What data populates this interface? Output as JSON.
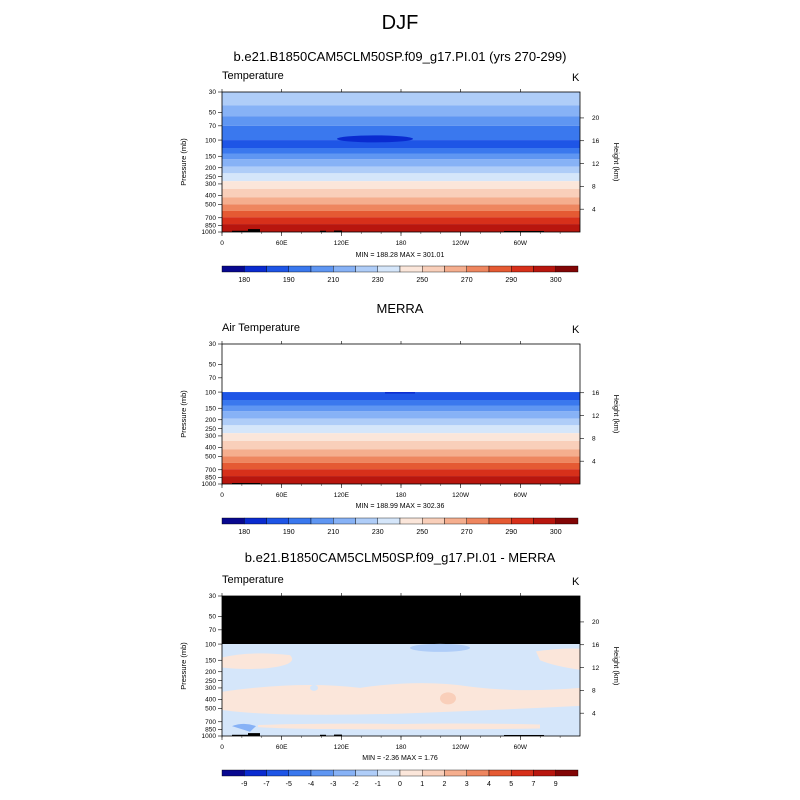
{
  "page_title": "DJF",
  "panels": [
    {
      "title": "b.e21.B1850CAM5CLM50SP.f09_g17.PI.01 (yrs 270-299)",
      "variable": "Temperature",
      "units": "K",
      "y_axis_label": "Pressure (mb)",
      "right_axis_label": "Height (km)",
      "minmax": "MIN = 188.28  MAX = 301.01",
      "colorbar_labels": [
        "180",
        "190",
        "210",
        "230",
        "250",
        "270",
        "290",
        "300"
      ]
    },
    {
      "title": "MERRA",
      "variable": "Air Temperature",
      "units": "K",
      "y_axis_label": "Pressure (mb)",
      "right_axis_label": "Height (km)",
      "minmax": "MIN = 188.99  MAX = 302.36",
      "colorbar_labels": [
        "180",
        "190",
        "210",
        "230",
        "250",
        "270",
        "290",
        "300"
      ]
    },
    {
      "title": "b.e21.B1850CAM5CLM50SP.f09_g17.PI.01 - MERRA",
      "variable": "Temperature",
      "units": "K",
      "y_axis_label": "Pressure (mb)",
      "right_axis_label": "Height (km)",
      "minmax": "MIN =  -2.36  MAX =   1.76",
      "colorbar_labels": [
        "-9",
        "-7",
        "-5",
        "-4",
        "-3",
        "-2",
        "-1",
        "0",
        "1",
        "2",
        "3",
        "4",
        "5",
        "7",
        "9"
      ]
    }
  ],
  "chart_data": [
    {
      "type": "heatmap",
      "title": "b.e21.B1850CAM5CLM50SP.f09_g17.PI.01 (yrs 270-299)",
      "variable": "Temperature",
      "units": "K",
      "min": 188.28,
      "max": 301.01,
      "x_ticks": [
        "0",
        "60E",
        "120E",
        "180",
        "120W",
        "60W"
      ],
      "y_ticks": [
        "30",
        "50",
        "70",
        "100",
        "150",
        "200",
        "250",
        "300",
        "400",
        "500",
        "700",
        "850",
        "1000"
      ],
      "right_ticks": [
        "20",
        "16",
        "12",
        "8",
        "4"
      ],
      "profile_pressure": [
        30,
        50,
        70,
        100,
        150,
        200,
        250,
        300,
        400,
        500,
        700,
        850,
        1000
      ],
      "profile_temperature_K": [
        212,
        206,
        200,
        196,
        210,
        218,
        226,
        232,
        248,
        258,
        274,
        282,
        292
      ],
      "colorbar_levels": [
        "180",
        "190",
        "210",
        "230",
        "250",
        "270",
        "290",
        "300"
      ]
    },
    {
      "type": "heatmap",
      "title": "MERRA",
      "variable": "Air Temperature",
      "units": "K",
      "min": 188.99,
      "max": 302.36,
      "x_ticks": [
        "0",
        "60E",
        "120E",
        "180",
        "120W",
        "60W"
      ],
      "y_ticks": [
        "30",
        "50",
        "70",
        "100",
        "150",
        "200",
        "250",
        "300",
        "400",
        "500",
        "700",
        "850",
        "1000"
      ],
      "right_ticks": [
        "16",
        "12",
        "8",
        "4"
      ],
      "profile_pressure": [
        100,
        150,
        200,
        250,
        300,
        400,
        500,
        700,
        850,
        1000
      ],
      "profile_temperature_K": [
        196,
        210,
        218,
        226,
        232,
        248,
        258,
        274,
        282,
        292
      ],
      "colorbar_levels": [
        "180",
        "190",
        "210",
        "230",
        "250",
        "270",
        "290",
        "300"
      ]
    },
    {
      "type": "heatmap",
      "title": "b.e21.B1850CAM5CLM50SP.f09_g17.PI.01 - MERRA",
      "variable": "Temperature",
      "units": "K",
      "min": -2.36,
      "max": 1.76,
      "x_ticks": [
        "0",
        "60E",
        "120E",
        "180",
        "120W",
        "60W"
      ],
      "y_ticks": [
        "30",
        "50",
        "70",
        "100",
        "150",
        "200",
        "250",
        "300",
        "400",
        "500",
        "700",
        "850",
        "1000"
      ],
      "right_ticks": [
        "20",
        "16",
        "12",
        "8",
        "4"
      ],
      "colorbar_levels": [
        "-9",
        "-7",
        "-5",
        "-4",
        "-3",
        "-2",
        "-1",
        "0",
        "1",
        "2",
        "3",
        "4",
        "5",
        "7",
        "9"
      ]
    }
  ],
  "colors": {
    "temp_scale": [
      "#08088f",
      "#0a2bd0",
      "#1e55e6",
      "#3a78ee",
      "#5f96f2",
      "#87b2f6",
      "#afcdf8",
      "#d5e6fa",
      "#fbe6da",
      "#f9cfba",
      "#f5ae8e",
      "#ee865f",
      "#e55a33",
      "#d7301a",
      "#b8160e",
      "#820606"
    ],
    "diff_scale": [
      "#08088f",
      "#0a2bd0",
      "#1e55e6",
      "#3a78ee",
      "#5f96f2",
      "#87b2f6",
      "#afcdf8",
      "#d5e6fa",
      "#fbe6da",
      "#f9cfba",
      "#f5ae8e",
      "#ee865f",
      "#e55a33",
      "#d7301a",
      "#b8160e",
      "#820606"
    ],
    "missing": "#000000"
  }
}
